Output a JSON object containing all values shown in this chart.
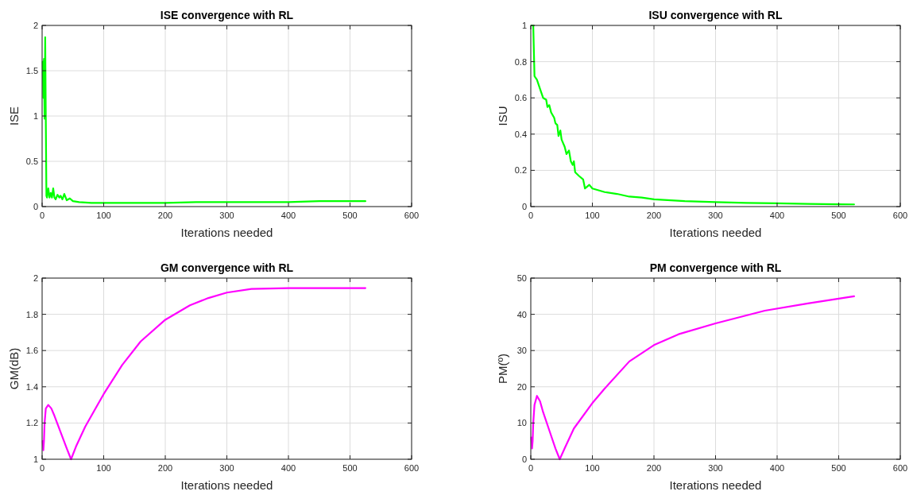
{
  "chart_data": [
    {
      "type": "line",
      "title": "ISE convergence with RL",
      "xlabel": "Iterations needed",
      "ylabel": "ISE",
      "grid": true,
      "xlim": [
        0,
        600
      ],
      "xticks": [
        0,
        100,
        200,
        300,
        400,
        500,
        600
      ],
      "ylim": [
        0,
        2
      ],
      "yticks": [
        0,
        0.5,
        1,
        1.5,
        2
      ],
      "series": [
        {
          "color": "#00ff00",
          "x": [
            1,
            2,
            3,
            4,
            5,
            6,
            7,
            8,
            10,
            12,
            14,
            16,
            18,
            20,
            22,
            25,
            28,
            30,
            33,
            36,
            40,
            45,
            50,
            60,
            80,
            100,
            150,
            200,
            250,
            300,
            350,
            400,
            450,
            500,
            525
          ],
          "values": [
            1.6,
            1.2,
            1.63,
            0.97,
            1.87,
            0.96,
            0.12,
            0.1,
            0.2,
            0.1,
            0.15,
            0.1,
            0.2,
            0.1,
            0.08,
            0.13,
            0.1,
            0.12,
            0.08,
            0.14,
            0.07,
            0.09,
            0.06,
            0.05,
            0.04,
            0.04,
            0.04,
            0.04,
            0.05,
            0.05,
            0.05,
            0.05,
            0.06,
            0.06,
            0.06
          ]
        }
      ]
    },
    {
      "type": "line",
      "title": "ISU convergence with RL",
      "xlabel": "Iterations needed",
      "ylabel": "ISU",
      "grid": true,
      "xlim": [
        0,
        600
      ],
      "xticks": [
        0,
        100,
        200,
        300,
        400,
        500,
        600
      ],
      "ylim": [
        0,
        1
      ],
      "yticks": [
        0,
        0.2,
        0.4,
        0.6,
        0.8,
        1
      ],
      "series": [
        {
          "color": "#00ff00",
          "x": [
            1,
            4,
            6,
            10,
            15,
            20,
            25,
            27,
            30,
            33,
            38,
            40,
            43,
            45,
            48,
            50,
            55,
            58,
            62,
            65,
            68,
            70,
            72,
            78,
            85,
            88,
            95,
            100,
            120,
            140,
            160,
            180,
            200,
            250,
            300,
            350,
            400,
            450,
            500,
            525
          ],
          "values": [
            1.0,
            1.0,
            0.72,
            0.7,
            0.65,
            0.6,
            0.59,
            0.55,
            0.56,
            0.52,
            0.49,
            0.46,
            0.45,
            0.39,
            0.42,
            0.37,
            0.33,
            0.29,
            0.31,
            0.25,
            0.23,
            0.25,
            0.19,
            0.17,
            0.15,
            0.1,
            0.12,
            0.1,
            0.08,
            0.07,
            0.055,
            0.05,
            0.04,
            0.03,
            0.025,
            0.02,
            0.018,
            0.015,
            0.013,
            0.012
          ]
        }
      ]
    },
    {
      "type": "line",
      "title": "GM convergence with RL",
      "xlabel": "Iterations needed",
      "ylabel": "GM(dB)",
      "grid": true,
      "xlim": [
        0,
        600
      ],
      "xticks": [
        0,
        100,
        200,
        300,
        400,
        500,
        600
      ],
      "ylim": [
        1,
        2
      ],
      "yticks": [
        1,
        1.2,
        1.4,
        1.6,
        1.8,
        2
      ],
      "series": [
        {
          "color": "#ff00ff",
          "x": [
            1,
            2,
            3,
            4,
            6,
            10,
            15,
            20,
            30,
            40,
            47,
            55,
            70,
            100,
            130,
            160,
            200,
            240,
            270,
            300,
            340,
            400,
            525
          ],
          "values": [
            1.1,
            1.05,
            1.1,
            1.2,
            1.28,
            1.3,
            1.28,
            1.24,
            1.15,
            1.06,
            1.0,
            1.07,
            1.18,
            1.36,
            1.52,
            1.65,
            1.77,
            1.85,
            1.89,
            1.92,
            1.94,
            1.945,
            1.945
          ]
        }
      ]
    },
    {
      "type": "line",
      "title": "PM convergence with RL",
      "xlabel": "Iterations needed",
      "ylabel": "PM(º)",
      "grid": true,
      "xlim": [
        0,
        600
      ],
      "xticks": [
        0,
        100,
        200,
        300,
        400,
        500,
        600
      ],
      "ylim": [
        0,
        50
      ],
      "yticks": [
        0,
        10,
        20,
        30,
        40,
        50
      ],
      "series": [
        {
          "color": "#ff00ff",
          "x": [
            1,
            2,
            3,
            4,
            6,
            10,
            15,
            20,
            30,
            40,
            47,
            55,
            70,
            100,
            120,
            160,
            200,
            240,
            300,
            380,
            450,
            525
          ],
          "values": [
            6,
            3,
            5,
            10,
            15,
            17.5,
            16,
            13,
            8,
            3,
            0,
            3,
            8.5,
            15.5,
            19.5,
            27,
            31.5,
            34.5,
            37.5,
            41,
            43,
            45
          ]
        }
      ]
    }
  ]
}
